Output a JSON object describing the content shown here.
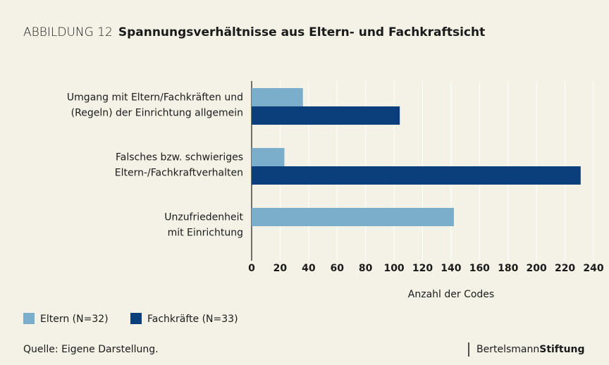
{
  "chart_data": {
    "type": "bar",
    "orientation": "horizontal",
    "title_prefix": "ABBILDUNG 12",
    "title": "Spannungsverhältnisse aus Eltern- und Fachkraftsicht",
    "categories": [
      "Umgang mit Eltern/Fachkräften und\n(Regeln) der Einrichtung allgemein",
      "Falsches bzw. schwieriges\nEltern-/Fachkraftverhalten",
      "Unzufriedenheit\nmit Einrichtung"
    ],
    "series": [
      {
        "name": "Eltern (N=32)",
        "color": "#7aaecb",
        "values": [
          36,
          23,
          142
        ]
      },
      {
        "name": "Fachkräfte (N=33)",
        "color": "#0b3f7c",
        "values": [
          104,
          231,
          null
        ]
      }
    ],
    "xlabel": "Anzahl der Codes",
    "xlim": [
      0,
      240
    ],
    "xticks": [
      0,
      20,
      40,
      60,
      80,
      100,
      120,
      140,
      160,
      180,
      200,
      220,
      240
    ],
    "grid": true,
    "source": "Quelle: Eigene Darstellung.",
    "logo": [
      "Bertelsmann",
      "Stiftung"
    ]
  }
}
